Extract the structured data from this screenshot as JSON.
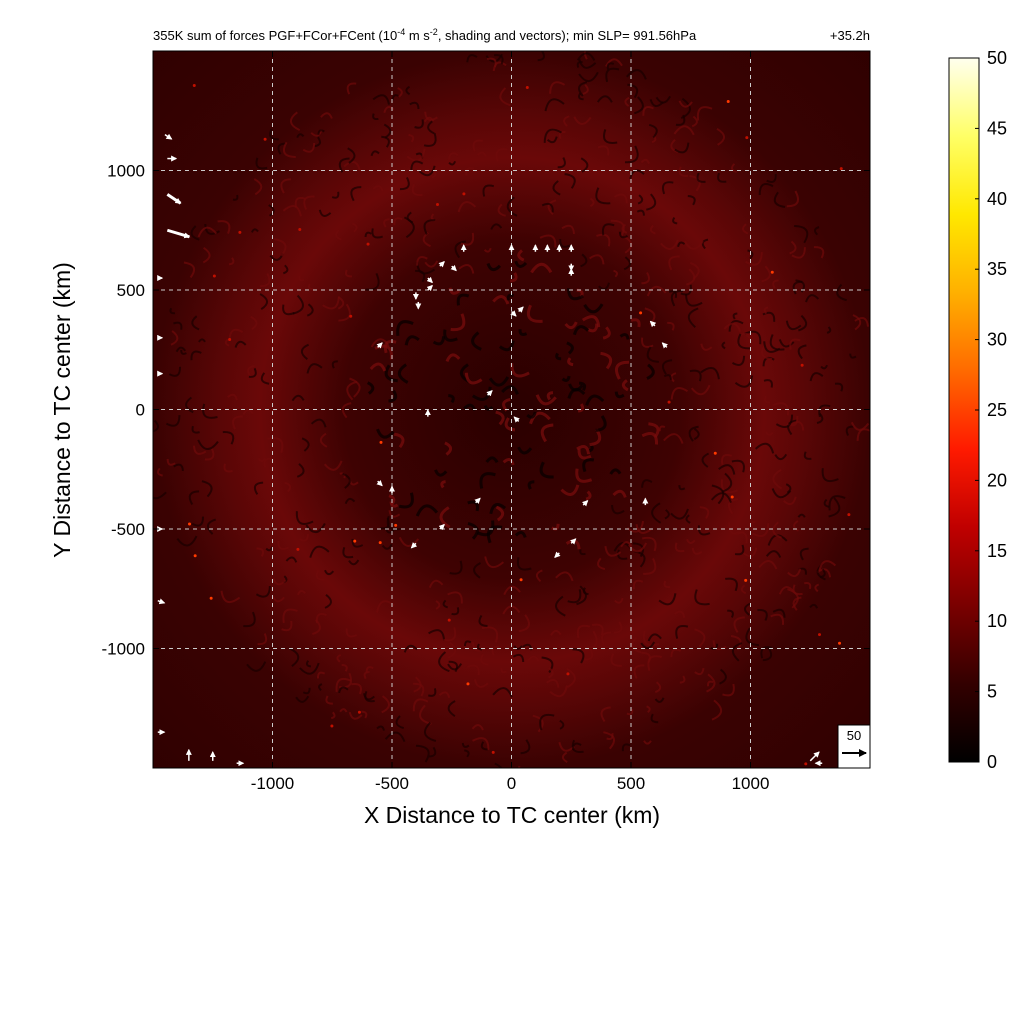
{
  "chart_data": {
    "type": "heatmap",
    "title": "355K sum of forces PGF+FCor+FCent (10",
    "title_exponent": "-4",
    "title_units_mid": " m s",
    "title_units_exponent": "-2",
    "title_rest": ", shading and vectors); min SLP= 991.56hPa",
    "time_label": "+35.2h",
    "xlabel": "X Distance to TC center (km)",
    "ylabel": "Y Distance to TC center (km)",
    "xlim": [
      -1500,
      1500
    ],
    "ylim": [
      -1500,
      1500
    ],
    "x_ticks": [
      -1000,
      -500,
      0,
      500,
      1000
    ],
    "y_ticks": [
      -1000,
      -500,
      0,
      500,
      1000
    ],
    "x_tick_labels": [
      "-1000",
      "-500",
      "0",
      "500",
      "1000"
    ],
    "y_tick_labels": [
      "-1000",
      "-500",
      "0",
      "500",
      "1000"
    ],
    "grid": true,
    "colorbar": {
      "min": 0,
      "max": 50,
      "ticks": [
        0,
        5,
        10,
        15,
        20,
        25,
        30,
        35,
        40,
        45,
        50
      ],
      "tick_labels": [
        "0",
        "5",
        "10",
        "15",
        "20",
        "25",
        "30",
        "35",
        "40",
        "45",
        "50"
      ],
      "colormap": "hot",
      "colors": [
        "#000000",
        "#330000",
        "#7a0000",
        "#c00000",
        "#ff1a00",
        "#ff6a00",
        "#ffb000",
        "#ffe800",
        "#ffff66",
        "#ffffee"
      ]
    },
    "reference_vector": {
      "magnitude": 50,
      "label": "50"
    },
    "field_description": "annular ring of elevated force magnitude (~5-10) at radius ~500-700 km, turbulent interior 0-8, background ~2-5",
    "vectors": [
      {
        "x": -400,
        "y": 490,
        "u": 0,
        "v": -3
      },
      {
        "x": -390,
        "y": 450,
        "u": 0,
        "v": -3
      },
      {
        "x": -350,
        "y": 550,
        "u": 2,
        "v": -2
      },
      {
        "x": -350,
        "y": 500,
        "u": 2,
        "v": 2
      },
      {
        "x": -300,
        "y": 600,
        "u": 2,
        "v": 2
      },
      {
        "x": -250,
        "y": 600,
        "u": 2,
        "v": -2
      },
      {
        "x": -200,
        "y": 660,
        "u": 0,
        "v": 3
      },
      {
        "x": 0,
        "y": 660,
        "u": 0,
        "v": 3
      },
      {
        "x": 100,
        "y": 660,
        "u": 0,
        "v": 3
      },
      {
        "x": 150,
        "y": 660,
        "u": 0,
        "v": 3
      },
      {
        "x": 200,
        "y": 660,
        "u": 0,
        "v": 3
      },
      {
        "x": 250,
        "y": 660,
        "u": 0,
        "v": 3
      },
      {
        "x": 250,
        "y": 610,
        "u": 0,
        "v": -3
      },
      {
        "x": 250,
        "y": 560,
        "u": 0,
        "v": 3
      },
      {
        "x": 0,
        "y": 410,
        "u": 2,
        "v": -2
      },
      {
        "x": 30,
        "y": 410,
        "u": 2,
        "v": 2
      },
      {
        "x": 600,
        "y": 350,
        "u": -2,
        "v": 2
      },
      {
        "x": 650,
        "y": 260,
        "u": -2,
        "v": 2
      },
      {
        "x": -560,
        "y": 260,
        "u": 2,
        "v": 2
      },
      {
        "x": -100,
        "y": 60,
        "u": 2,
        "v": 2
      },
      {
        "x": -350,
        "y": -30,
        "u": 0,
        "v": 3
      },
      {
        "x": 30,
        "y": -50,
        "u": -2,
        "v": 2
      },
      {
        "x": -560,
        "y": -300,
        "u": 2,
        "v": -2
      },
      {
        "x": -500,
        "y": -350,
        "u": 0,
        "v": 3
      },
      {
        "x": -150,
        "y": -390,
        "u": 2,
        "v": 2
      },
      {
        "x": -300,
        "y": -500,
        "u": 2,
        "v": 2
      },
      {
        "x": -400,
        "y": -560,
        "u": -2,
        "v": -2
      },
      {
        "x": 250,
        "y": -560,
        "u": 2,
        "v": 2
      },
      {
        "x": 200,
        "y": -600,
        "u": -2,
        "v": -2
      },
      {
        "x": 300,
        "y": -400,
        "u": 2,
        "v": 2
      },
      {
        "x": 560,
        "y": -400,
        "u": 0,
        "v": 3
      },
      {
        "x": -1450,
        "y": 1150,
        "u": 3,
        "v": -2
      },
      {
        "x": -1440,
        "y": 1050,
        "u": 4,
        "v": 0
      },
      {
        "x": -1440,
        "y": 900,
        "u": 6,
        "v": -4
      },
      {
        "x": -1440,
        "y": 750,
        "u": 10,
        "v": -3
      },
      {
        "x": -1480,
        "y": 550,
        "u": 2,
        "v": 0
      },
      {
        "x": -1480,
        "y": 300,
        "u": 2,
        "v": 0
      },
      {
        "x": -1480,
        "y": 150,
        "u": 2,
        "v": 0
      },
      {
        "x": -1480,
        "y": -500,
        "u": 2,
        "v": 0
      },
      {
        "x": -1480,
        "y": -800,
        "u": 3,
        "v": -1
      },
      {
        "x": -1480,
        "y": -1350,
        "u": 3,
        "v": 0
      },
      {
        "x": -1350,
        "y": -1470,
        "u": 0,
        "v": 5
      },
      {
        "x": -1250,
        "y": -1470,
        "u": 0,
        "v": 4
      },
      {
        "x": -1150,
        "y": -1480,
        "u": 3,
        "v": 0
      },
      {
        "x": 1250,
        "y": -1470,
        "u": 4,
        "v": 4
      },
      {
        "x": 1300,
        "y": -1480,
        "u": -3,
        "v": 0
      }
    ]
  }
}
